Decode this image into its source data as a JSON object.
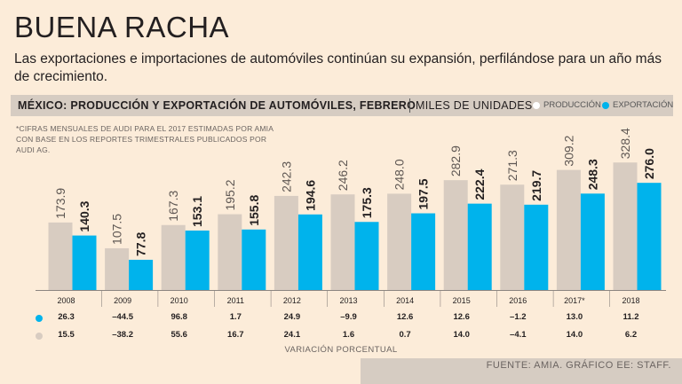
{
  "header": {
    "title": "BUENA RACHA",
    "subtitle": "Las exportaciones e importaciones de automóviles continúan su expansión, perfilándose para un año más de crecimiento."
  },
  "band": {
    "title": "MÉXICO: PRODUCCIÓN Y EXPORTACIÓN DE AUTOMÓVILES, FEBRERO",
    "units": "MILES DE UNIDADES",
    "legend_produccion": "PRODUCCIÓN",
    "legend_exportacion": "EXPORTACIÓN"
  },
  "note": "*CIFRAS MENSUALES DE AUDI PARA EL 2017 ESTIMADAS POR AMIA CON BASE EN LOS REPORTES TRIMESTRALES PUBLICADOS POR AUDI AG.",
  "colors": {
    "produccion": "#d8ccc1",
    "exportacion": "#00b3ec",
    "background": "#fcecd9"
  },
  "chart_data": {
    "type": "bar",
    "title": "MÉXICO: PRODUCCIÓN Y EXPORTACIÓN DE AUTOMÓVILES, FEBRERO",
    "ylabel": "MILES DE UNIDADES",
    "xlabel": "",
    "ylim": [
      0,
      400
    ],
    "categories": [
      "2008",
      "2009",
      "2010",
      "2011",
      "2012",
      "2013",
      "2014",
      "2015",
      "2016",
      "2017*",
      "2018"
    ],
    "series": [
      {
        "name": "PRODUCCIÓN",
        "values": [
          173.9,
          107.5,
          167.3,
          195.2,
          242.3,
          246.2,
          248.0,
          282.9,
          271.3,
          309.2,
          328.4
        ],
        "labels": [
          "173.9",
          "107.5",
          "167.3",
          "195.2",
          "242.3",
          "246.2",
          "248.0",
          "282.9",
          "271.3",
          "309.2",
          "328.4"
        ]
      },
      {
        "name": "EXPORTACIÓN",
        "values": [
          140.3,
          77.8,
          153.1,
          155.8,
          194.6,
          175.3,
          197.5,
          222.4,
          219.7,
          248.3,
          276.0
        ],
        "labels": [
          "140.3",
          "77.8",
          "153.1",
          "155.8",
          "194.6",
          "175.3",
          "197.5",
          "222.4",
          "219.7",
          "248.3",
          "276.0"
        ]
      }
    ],
    "variacion": {
      "caption": "VARIACIÓN PORCENTUAL",
      "exportacion": [
        "26.3",
        "–44.5",
        "96.8",
        "1.7",
        "24.9",
        "–9.9",
        "12.6",
        "12.6",
        "–1.2",
        "13.0",
        "11.2"
      ],
      "produccion": [
        "15.5",
        "–38.2",
        "55.6",
        "16.7",
        "24.1",
        "1.6",
        "0.7",
        "14.0",
        "–4.1",
        "14.0",
        "6.2"
      ]
    }
  },
  "source": "FUENTE: AMIA. GRÁFICO EE: STAFF."
}
